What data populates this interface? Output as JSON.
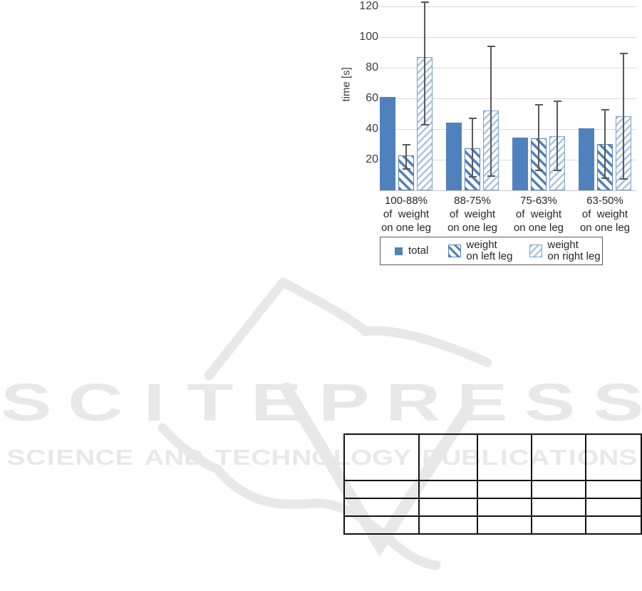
{
  "watermark": {
    "title": "SCITEPRESS",
    "subtitle": "SCIENCE AND TECHNOLOGY PUBLICATIONS",
    "color": "#e8e8e8"
  },
  "chart_data": {
    "type": "bar",
    "title": "",
    "xlabel": "",
    "ylabel": "time [s]",
    "ylim": [
      0,
      124
    ],
    "yticks": [
      20,
      40,
      60,
      80,
      100,
      120
    ],
    "grid": true,
    "legend_position": "bottom",
    "categories": [
      "100-88%\nof  weight\non one leg",
      "88-75%\nof  weight\non one leg",
      "75-63%\nof  weight\non one leg",
      "63-50%\nof  weight\non one leg"
    ],
    "series": [
      {
        "name": "total",
        "style": "solid",
        "color": "#4f81bd",
        "values": [
          61,
          44,
          34.5,
          40.5
        ]
      },
      {
        "name": "weight\non left leg",
        "style": "hatch-backslash",
        "color": "#4f81bd",
        "values": [
          23,
          27.5,
          34,
          30
        ],
        "error_low": [
          14,
          9,
          13,
          8
        ],
        "error_high": [
          30,
          47,
          56,
          52.5
        ]
      },
      {
        "name": "weight\non right leg",
        "style": "hatch-slash",
        "color": "#a9c5e1",
        "values": [
          87,
          52,
          35.5,
          48.5
        ],
        "error_low": [
          43,
          9.5,
          13,
          7.5
        ],
        "error_high": [
          123,
          94,
          58,
          89.5
        ]
      }
    ],
    "error_bar_color": "#595959",
    "gridline_color": "#d9d9d9"
  },
  "table": {
    "rows": 4,
    "cols": 5,
    "cells": [
      [
        "",
        "",
        "",
        "",
        ""
      ],
      [
        "",
        "",
        "",
        "",
        ""
      ],
      [
        "",
        "",
        "",
        "",
        ""
      ],
      [
        "",
        "",
        "",
        "",
        ""
      ]
    ]
  }
}
